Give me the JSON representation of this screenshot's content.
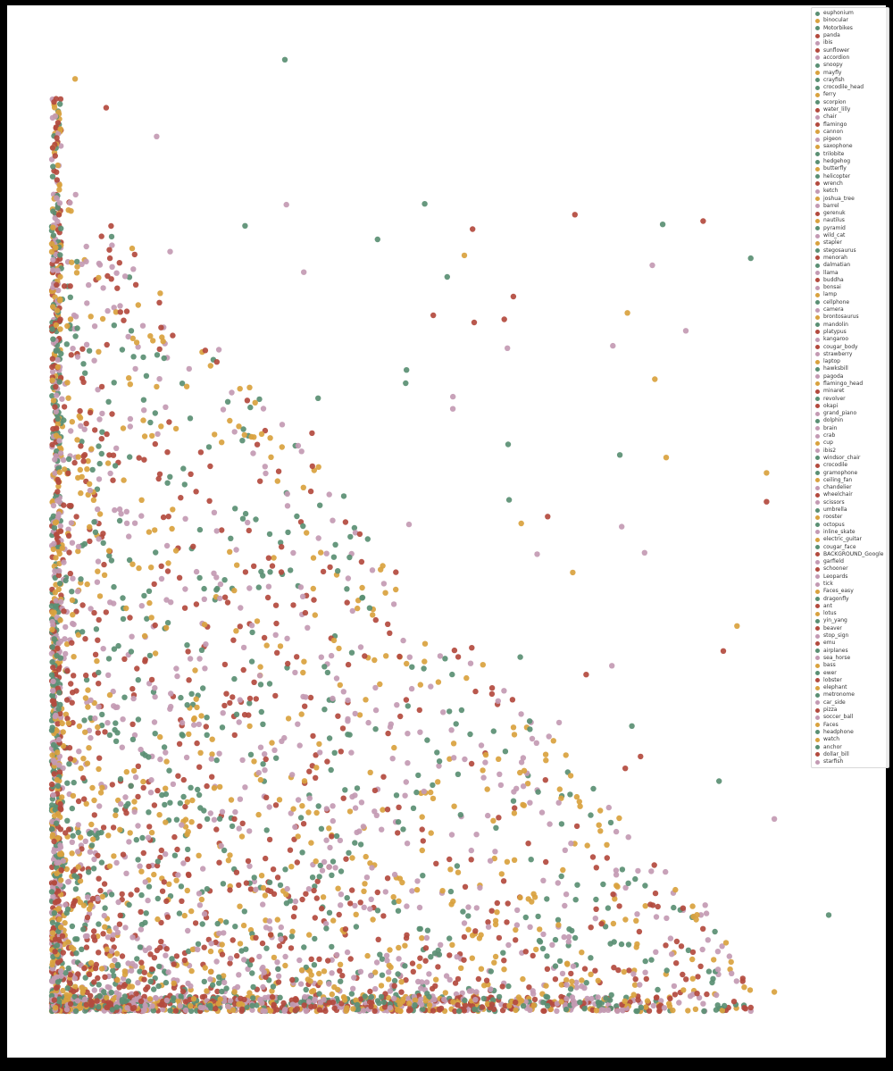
{
  "chart_data": {
    "type": "scatter",
    "title": "",
    "xlabel": "",
    "ylabel": "",
    "xlim": [
      0,
      100
    ],
    "ylim": [
      0,
      100
    ],
    "grid": false,
    "legend_position": "top-right",
    "palette": [
      "#5a8f73",
      "#d9a23e",
      "#b34a3e",
      "#c39ab3"
    ],
    "series": [
      {
        "name": "euphonium",
        "color": "#5a8f73"
      },
      {
        "name": "binocular",
        "color": "#d9a23e"
      },
      {
        "name": "Motorbikes",
        "color": "#5a8f73"
      },
      {
        "name": "panda",
        "color": "#b34a3e"
      },
      {
        "name": "ibis",
        "color": "#c39ab3"
      },
      {
        "name": "sunflower",
        "color": "#b34a3e"
      },
      {
        "name": "accordion",
        "color": "#c39ab3"
      },
      {
        "name": "snoopy",
        "color": "#5a8f73"
      },
      {
        "name": "mayfly",
        "color": "#d9a23e"
      },
      {
        "name": "crayfish",
        "color": "#5a8f73"
      },
      {
        "name": "crocodile_head",
        "color": "#5a8f73"
      },
      {
        "name": "ferry",
        "color": "#d9a23e"
      },
      {
        "name": "scorpion",
        "color": "#5a8f73"
      },
      {
        "name": "water_lilly",
        "color": "#b34a3e"
      },
      {
        "name": "chair",
        "color": "#c39ab3"
      },
      {
        "name": "flamingo",
        "color": "#b34a3e"
      },
      {
        "name": "cannon",
        "color": "#d9a23e"
      },
      {
        "name": "pigeon",
        "color": "#c39ab3"
      },
      {
        "name": "saxophone",
        "color": "#d9a23e"
      },
      {
        "name": "trilobite",
        "color": "#5a8f73"
      },
      {
        "name": "hedgehog",
        "color": "#5a8f73"
      },
      {
        "name": "butterfly",
        "color": "#d9a23e"
      },
      {
        "name": "helicopter",
        "color": "#5a8f73"
      },
      {
        "name": "wrench",
        "color": "#b34a3e"
      },
      {
        "name": "ketch",
        "color": "#c39ab3"
      },
      {
        "name": "joshua_tree",
        "color": "#d9a23e"
      },
      {
        "name": "barrel",
        "color": "#c39ab3"
      },
      {
        "name": "gerenuk",
        "color": "#b34a3e"
      },
      {
        "name": "nautilus",
        "color": "#d9a23e"
      },
      {
        "name": "pyramid",
        "color": "#5a8f73"
      },
      {
        "name": "wild_cat",
        "color": "#c39ab3"
      },
      {
        "name": "stapler",
        "color": "#d9a23e"
      },
      {
        "name": "stegosaurus",
        "color": "#5a8f73"
      },
      {
        "name": "menorah",
        "color": "#b34a3e"
      },
      {
        "name": "dalmatian",
        "color": "#5a8f73"
      },
      {
        "name": "llama",
        "color": "#c39ab3"
      },
      {
        "name": "buddha",
        "color": "#b34a3e"
      },
      {
        "name": "bonsai",
        "color": "#c39ab3"
      },
      {
        "name": "lamp",
        "color": "#d9a23e"
      },
      {
        "name": "cellphone",
        "color": "#5a8f73"
      },
      {
        "name": "camera",
        "color": "#c39ab3"
      },
      {
        "name": "brontosaurus",
        "color": "#d9a23e"
      },
      {
        "name": "mandolin",
        "color": "#5a8f73"
      },
      {
        "name": "platypus",
        "color": "#b34a3e"
      },
      {
        "name": "kangaroo",
        "color": "#c39ab3"
      },
      {
        "name": "cougar_body",
        "color": "#b34a3e"
      },
      {
        "name": "strawberry",
        "color": "#c39ab3"
      },
      {
        "name": "laptop",
        "color": "#d9a23e"
      },
      {
        "name": "hawksbill",
        "color": "#5a8f73"
      },
      {
        "name": "pagoda",
        "color": "#c39ab3"
      },
      {
        "name": "flamingo_head",
        "color": "#d9a23e"
      },
      {
        "name": "minaret",
        "color": "#b34a3e"
      },
      {
        "name": "revolver",
        "color": "#5a8f73"
      },
      {
        "name": "okapi",
        "color": "#b34a3e"
      },
      {
        "name": "grand_piano",
        "color": "#c39ab3"
      },
      {
        "name": "dolphin",
        "color": "#5a8f73"
      },
      {
        "name": "brain",
        "color": "#c39ab3"
      },
      {
        "name": "crab",
        "color": "#c39ab3"
      },
      {
        "name": "cup",
        "color": "#d9a23e"
      },
      {
        "name": "ibis2",
        "color": "#c39ab3"
      },
      {
        "name": "windsor_chair",
        "color": "#5a8f73"
      },
      {
        "name": "crocodile",
        "color": "#b34a3e"
      },
      {
        "name": "gramophone",
        "color": "#5a8f73"
      },
      {
        "name": "ceiling_fan",
        "color": "#d9a23e"
      },
      {
        "name": "chandelier",
        "color": "#c39ab3"
      },
      {
        "name": "wheelchair",
        "color": "#b34a3e"
      },
      {
        "name": "scissors",
        "color": "#c39ab3"
      },
      {
        "name": "umbrella",
        "color": "#5a8f73"
      },
      {
        "name": "rooster",
        "color": "#d9a23e"
      },
      {
        "name": "octopus",
        "color": "#5a8f73"
      },
      {
        "name": "inline_skate",
        "color": "#c39ab3"
      },
      {
        "name": "electric_guitar",
        "color": "#d9a23e"
      },
      {
        "name": "cougar_face",
        "color": "#5a8f73"
      },
      {
        "name": "BACKGROUND_Google",
        "color": "#b34a3e"
      },
      {
        "name": "garfield",
        "color": "#c39ab3"
      },
      {
        "name": "schooner",
        "color": "#b34a3e"
      },
      {
        "name": "Leopards",
        "color": "#c39ab3"
      },
      {
        "name": "tick",
        "color": "#c39ab3"
      },
      {
        "name": "Faces_easy",
        "color": "#d9a23e"
      },
      {
        "name": "dragonfly",
        "color": "#5a8f73"
      },
      {
        "name": "ant",
        "color": "#b34a3e"
      },
      {
        "name": "lotus",
        "color": "#d9a23e"
      },
      {
        "name": "yin_yang",
        "color": "#5a8f73"
      },
      {
        "name": "beaver",
        "color": "#b34a3e"
      },
      {
        "name": "stop_sign",
        "color": "#c39ab3"
      },
      {
        "name": "emu",
        "color": "#b34a3e"
      },
      {
        "name": "airplanes",
        "color": "#5a8f73"
      },
      {
        "name": "sea_horse",
        "color": "#c39ab3"
      },
      {
        "name": "bass",
        "color": "#d9a23e"
      },
      {
        "name": "ewer",
        "color": "#5a8f73"
      },
      {
        "name": "lobster",
        "color": "#b34a3e"
      },
      {
        "name": "elephant",
        "color": "#d9a23e"
      },
      {
        "name": "metronome",
        "color": "#5a8f73"
      },
      {
        "name": "car_side",
        "color": "#c39ab3"
      },
      {
        "name": "pizza",
        "color": "#b34a3e"
      },
      {
        "name": "soccer_ball",
        "color": "#c39ab3"
      },
      {
        "name": "Faces",
        "color": "#d9a23e"
      },
      {
        "name": "headphone",
        "color": "#5a8f73"
      },
      {
        "name": "watch",
        "color": "#d9a23e"
      },
      {
        "name": "anchor",
        "color": "#5a8f73"
      },
      {
        "name": "dollar_bill",
        "color": "#b34a3e"
      },
      {
        "name": "starfish",
        "color": "#c39ab3"
      }
    ],
    "scatter_seed": 7,
    "point_count": 4200
  }
}
